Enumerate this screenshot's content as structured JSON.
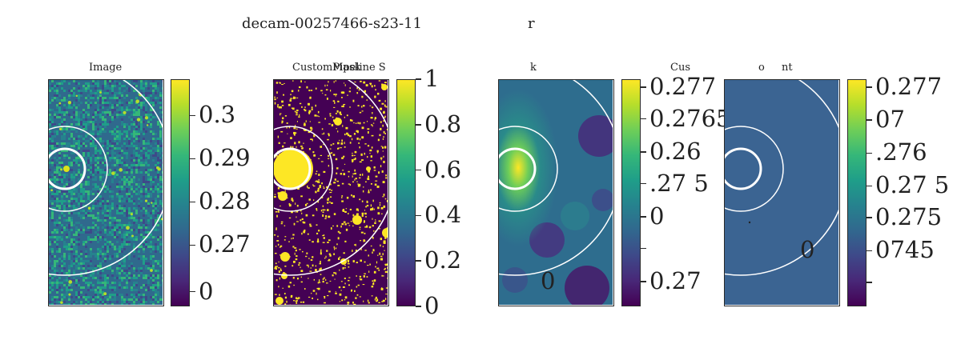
{
  "suptitle_left": "decam-00257466-s23-11",
  "suptitle_right": "r",
  "panels": [
    {
      "title": "Image",
      "kind": "noise",
      "colorbar": {
        "ticks": [
          "0.3",
          "0.29",
          "0.28",
          "0.27",
          "0"
        ],
        "levels": [
          0.84,
          0.65,
          0.46,
          0.27,
          0.065
        ]
      }
    },
    {
      "title": "CustomPipeline S",
      "title_overlap": "Mask",
      "kind": "mask",
      "colorbar": {
        "ticks": [
          "1",
          "0.8",
          "0.6",
          "0.4",
          "0.2",
          "0"
        ],
        "levels": [
          1.0,
          0.8,
          0.6,
          0.4,
          0.2,
          0.0
        ]
      }
    },
    {
      "title": "k",
      "title_extra": "Cus",
      "kind": "smooth",
      "colorbar": {
        "ticks": [
          "0.277",
          "0.2765",
          "0.26",
          ".27   5",
          "0",
          "0.27"
        ],
        "levels": [
          0.965,
          0.825,
          0.68,
          0.54,
          0.395,
          0.11
        ],
        "extra_marks": [
          0.255
        ]
      },
      "stray_texts": [
        "0"
      ]
    },
    {
      "title": "o",
      "title_extra": "nt",
      "kind": "flat",
      "colorbar": {
        "ticks": [
          "0.277",
          "07",
          ".276",
          "0.27   5",
          "0.275",
          "0745"
        ],
        "levels": [
          0.965,
          0.82,
          0.675,
          0.53,
          0.39,
          0.245
        ],
        "extra_marks": [
          0.105
        ]
      },
      "stray_texts": [
        "0"
      ]
    }
  ],
  "colormap": "viridis",
  "colors": {
    "flat_fill": "#3b6492",
    "mask_bg": "#440154",
    "mask_fg": "#fde725"
  }
}
